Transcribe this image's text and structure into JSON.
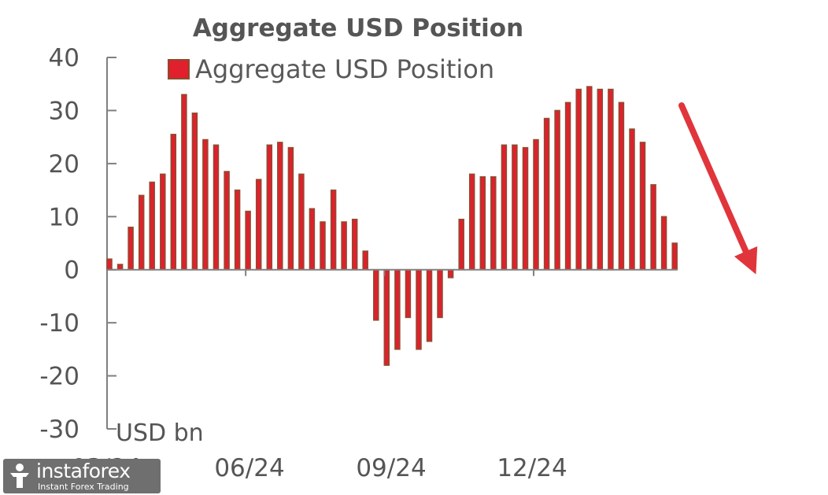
{
  "chart_data": {
    "type": "bar",
    "title": "Aggregate USD Position",
    "series": [
      {
        "name": "Aggregate USD Position",
        "values": [
          2,
          1,
          8,
          14,
          16.5,
          18,
          25.5,
          33,
          29.5,
          24.5,
          23.5,
          18.5,
          15,
          11,
          17,
          23.5,
          24,
          23,
          18,
          11.5,
          9,
          15,
          9,
          9.5,
          3.5,
          -9.5,
          -18,
          -15,
          -9,
          -15,
          -13.5,
          -9,
          -1.5,
          9.5,
          18,
          17.5,
          17.5,
          23.5,
          23.5,
          23,
          24.5,
          28.5,
          30,
          31.5,
          34,
          34.5,
          34,
          34,
          31.5,
          26.5,
          24,
          16,
          10,
          5
        ],
        "color": "#e0202c",
        "edge_color": "#8b4d30"
      }
    ],
    "yticks": [
      40,
      30,
      20,
      10,
      0,
      -10,
      -20,
      -30
    ],
    "ytick_labels": [
      "40",
      "30",
      "20",
      "10",
      "0",
      "-10",
      "-20",
      "-30"
    ],
    "ylim": [
      -30,
      40
    ],
    "xtick_labels": [
      "03/24",
      "06/24",
      "09/24",
      "12/24"
    ],
    "ylabel": "USD bn",
    "legend_position": "top",
    "grid": false,
    "annotations": [
      {
        "type": "arrow",
        "direction": "down-right",
        "meaning": "downward trend",
        "color": "#e0353b"
      }
    ]
  },
  "watermark": {
    "name": "instaforex",
    "tagline": "Instant Forex Trading"
  }
}
